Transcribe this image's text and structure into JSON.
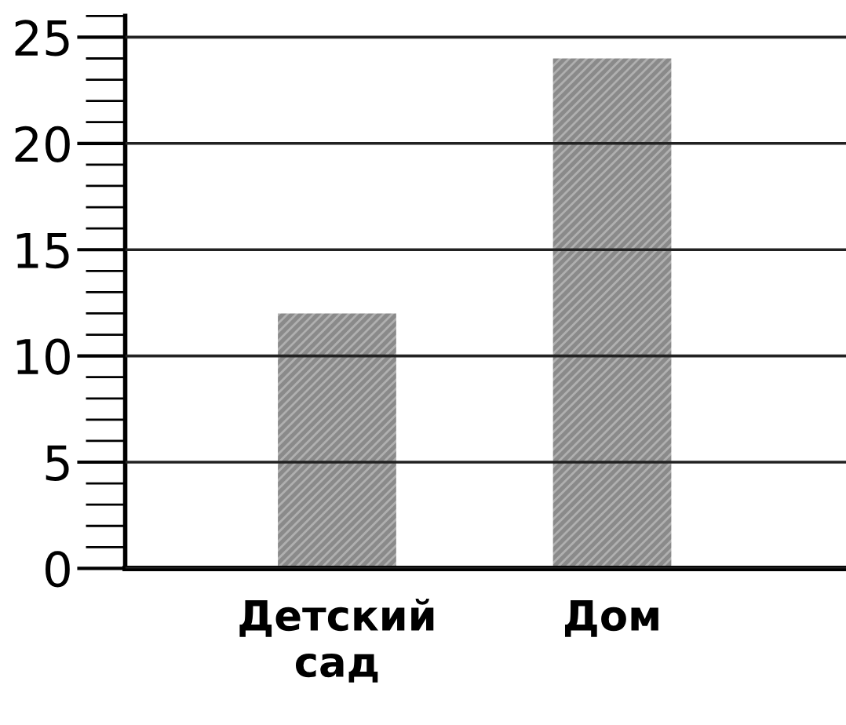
{
  "chart_data": {
    "type": "bar",
    "categories": [
      "Детский\nсад",
      "Дом"
    ],
    "values": [
      12,
      24
    ],
    "color": "#8a8a8a",
    "ylim": [
      0,
      26
    ],
    "yticks": [
      0,
      5,
      10,
      15,
      20,
      25
    ],
    "grid": "y"
  }
}
